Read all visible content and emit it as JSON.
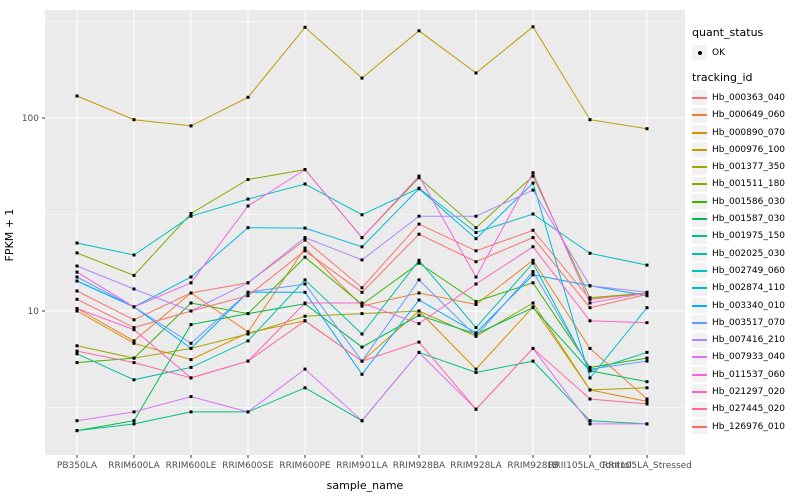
{
  "figure": {
    "background": "#FFFFFF",
    "panel_background": "#EBEBEB",
    "gridline_color": "#FFFFFF",
    "tick_color": "#333333",
    "tick_label_color": "#4D4D4D",
    "point_color": "#000000"
  },
  "legend": {
    "quant_status_title": "quant_status",
    "ok_label": "OK",
    "tracking_id_title": "tracking_id"
  },
  "chart_data": {
    "type": "line",
    "title": "",
    "x_axis_label": "sample_name",
    "y_axis_label": "FPKM + 1",
    "y_scale": "log10",
    "grid": true,
    "legend_position": "right",
    "points": "black dot at every observation (quant_status OK)",
    "y_major_ticks": [
      100,
      10
    ],
    "y_minor_gridlines": [
      3.162,
      31.623,
      316.228
    ],
    "ylim": [
      1.8,
      360
    ],
    "categories": [
      "PB350LA",
      "RRIM600LA",
      "RRIM600LE",
      "RRIM600SE",
      "RRIM600PE",
      "RRIM901LA",
      "RRIM928BA",
      "RRIM928LA",
      "RRIM928LB",
      "RRII105LA_Control",
      "RRII105LA_Stressed"
    ],
    "series": [
      {
        "name": "Hb_000363_040",
        "color": "#F8766D",
        "values": [
          12.7,
          9.0,
          12.4,
          14.0,
          23.3,
          13.2,
          28.2,
          20.5,
          26.2,
          11.5,
          12.4
        ]
      },
      {
        "name": "Hb_000649_060",
        "color": "#EA8331",
        "values": [
          10.3,
          7.0,
          12.4,
          7.8,
          21.2,
          10.6,
          12.4,
          10.8,
          18.3,
          6.4,
          3.5
        ]
      },
      {
        "name": "Hb_000890_070",
        "color": "#D89000",
        "values": [
          10.0,
          6.8,
          5.6,
          7.7,
          8.9,
          5.5,
          10.0,
          5.0,
          10.5,
          3.9,
          3.4
        ]
      },
      {
        "name": "Hb_000976_100",
        "color": "#C09B00",
        "values": [
          130,
          98,
          91,
          128,
          295,
          161,
          283,
          171,
          297,
          98,
          88
        ]
      },
      {
        "name": "Hb_001377_350",
        "color": "#A3A500",
        "values": [
          6.6,
          5.7,
          6.4,
          7.6,
          9.4,
          9.7,
          10.0,
          7.4,
          11.0,
          3.9,
          4.0
        ]
      },
      {
        "name": "Hb_001511_180",
        "color": "#7CAE00",
        "values": [
          20.0,
          15.3,
          32.0,
          48.0,
          54.0,
          24.0,
          49.0,
          27.0,
          50.0,
          11.7,
          12.4
        ]
      },
      {
        "name": "Hb_001586_030",
        "color": "#39B600",
        "values": [
          5.4,
          5.7,
          11.0,
          9.7,
          19.0,
          10.8,
          17.7,
          11.2,
          14.0,
          5.1,
          5.7
        ]
      },
      {
        "name": "Hb_001587_030",
        "color": "#00BB4E",
        "values": [
          2.4,
          2.7,
          8.5,
          9.7,
          10.9,
          6.5,
          9.5,
          7.6,
          10.4,
          4.9,
          4.3
        ]
      },
      {
        "name": "Hb_001975_150",
        "color": "#00C087",
        "values": [
          2.4,
          2.6,
          3.0,
          3.0,
          4.0,
          2.7,
          6.1,
          4.8,
          5.5,
          2.7,
          2.6
        ]
      },
      {
        "name": "Hb_002025_030",
        "color": "#00C1A9",
        "values": [
          6.0,
          4.4,
          5.1,
          7.0,
          14.5,
          7.6,
          18.3,
          8.2,
          17.7,
          4.9,
          6.1
        ]
      },
      {
        "name": "Hb_002749_060",
        "color": "#00BFC4",
        "values": [
          22.5,
          19.5,
          31.0,
          38.0,
          45.5,
          31.5,
          43.3,
          25.5,
          31.8,
          19.9,
          17.3
        ]
      },
      {
        "name": "Hb_002874_110",
        "color": "#00BADE",
        "values": [
          14.3,
          10.5,
          15.0,
          27.0,
          26.9,
          21.5,
          43.0,
          23.7,
          46.0,
          4.5,
          10.4
        ]
      },
      {
        "name": "Hb_003340_010",
        "color": "#00ACFC",
        "values": [
          14.3,
          10.5,
          6.4,
          12.5,
          12.5,
          4.7,
          11.4,
          7.7,
          15.4,
          13.5,
          12.0
        ]
      },
      {
        "name": "Hb_003517_070",
        "color": "#619CFF",
        "values": [
          15.0,
          10.5,
          6.8,
          12.5,
          13.8,
          5.5,
          14.5,
          7.4,
          16.0,
          5.0,
          5.5
        ]
      },
      {
        "name": "Hb_007416_210",
        "color": "#AE87FF",
        "values": [
          17.1,
          13.0,
          10.0,
          14.0,
          24.0,
          18.4,
          31.0,
          31.0,
          42.3,
          13.5,
          12.5
        ]
      },
      {
        "name": "Hb_007933_040",
        "color": "#DB72FB",
        "values": [
          2.7,
          3.0,
          3.6,
          3.0,
          5.0,
          2.7,
          6.1,
          3.1,
          6.4,
          2.6,
          2.6
        ]
      },
      {
        "name": "Hb_011537_060",
        "color": "#F564E3",
        "values": [
          15.9,
          10.5,
          14.0,
          35.0,
          54.0,
          24.0,
          50.0,
          15.0,
          52.0,
          11.0,
          12.4
        ]
      },
      {
        "name": "Hb_021297_020",
        "color": "#FF61C9",
        "values": [
          10.3,
          8.0,
          4.5,
          5.5,
          11.0,
          11.0,
          8.6,
          13.8,
          21.5,
          8.9,
          8.7
        ]
      },
      {
        "name": "Hb_027445_020",
        "color": "#FF689F",
        "values": [
          6.2,
          5.4,
          4.5,
          5.5,
          8.9,
          5.5,
          6.9,
          3.1,
          6.4,
          3.5,
          3.3
        ]
      },
      {
        "name": "Hb_126976_010",
        "color": "#FF6C67",
        "values": [
          11.5,
          8.2,
          10.0,
          12.0,
          20.5,
          12.5,
          25.0,
          18.0,
          24.0,
          10.4,
          12.2
        ]
      }
    ]
  }
}
